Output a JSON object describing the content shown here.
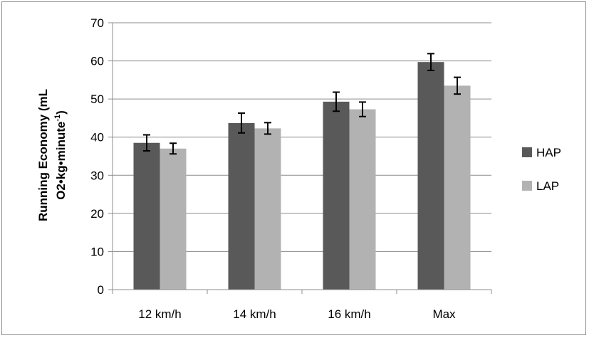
{
  "chart_data": {
    "type": "bar",
    "categories": [
      "12 km/h",
      "14 km/h",
      "16 km/h",
      "Max"
    ],
    "series": [
      {
        "name": "HAP",
        "color": "#595959",
        "values": [
          38.5,
          43.7,
          49.3,
          59.7
        ],
        "errors": [
          2.1,
          2.6,
          2.5,
          2.2
        ]
      },
      {
        "name": "LAP",
        "color": "#b2b2b2",
        "values": [
          37.0,
          42.3,
          47.3,
          53.5
        ],
        "errors": [
          1.4,
          1.5,
          1.9,
          2.2
        ]
      }
    ],
    "ylabel_line1": "Running Economy (mL",
    "ylabel_line2_main": "O2•kg•minute",
    "ylabel_line2_sup": "-1",
    "ylabel_line2_end": ")",
    "ylim": [
      0,
      70
    ],
    "yticks": [
      0,
      10,
      20,
      30,
      40,
      50,
      60,
      70
    ],
    "grid": true,
    "legend_position": "right"
  }
}
